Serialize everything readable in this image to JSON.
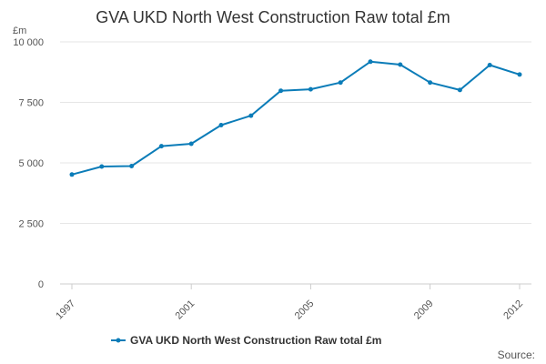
{
  "chart_data": {
    "type": "line",
    "title": "GVA UKD North West Construction Raw total £m",
    "ylabel": "£m",
    "xlabel": "",
    "x": [
      1997,
      1998,
      1999,
      2000,
      2001,
      2002,
      2003,
      2004,
      2005,
      2006,
      2007,
      2008,
      2009,
      2010,
      2011,
      2012
    ],
    "series": [
      {
        "name": "GVA UKD North West Construction Raw total £m",
        "values": [
          4520,
          4850,
          4870,
          5690,
          5790,
          6560,
          6950,
          7980,
          8040,
          8320,
          9180,
          9060,
          8320,
          8010,
          9040,
          8650
        ],
        "color": "#0b7cb8"
      }
    ],
    "ylim": [
      0,
      10000
    ],
    "yticks": [
      0,
      2500,
      5000,
      7500,
      10000
    ],
    "ytick_labels": [
      "0",
      "2 500",
      "5 000",
      "7 500",
      "10 000"
    ],
    "xticks": [
      1997,
      2001,
      2005,
      2009,
      2012
    ],
    "xtick_labels": [
      "1997",
      "2001",
      "2005",
      "2009",
      "2012"
    ],
    "grid": true,
    "legend_position": "bottom-center",
    "source_label": "Source:"
  },
  "colors": {
    "line": "#0b7cb8",
    "grid": "#e6e6e6",
    "axis": "#cccccc",
    "text": "#333333"
  }
}
